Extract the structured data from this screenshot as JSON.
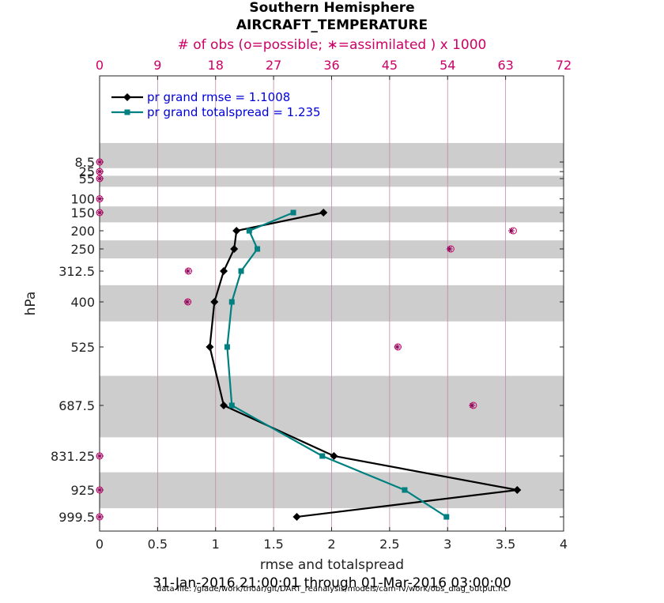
{
  "chart_data": {
    "type": "line",
    "title": "Southern Hemisphere",
    "subtitle": "AIRCRAFT_TEMPERATURE",
    "top_axis_label": "# of obs (o=possible; ∗=assimilated ) x 1000",
    "xlabel": "rmse and totalspread",
    "ylabel": "hPa",
    "xlim": [
      0,
      4
    ],
    "top_xlim": [
      0,
      72
    ],
    "x_ticks": [
      "0",
      "0.5",
      "1",
      "1.5",
      "2",
      "2.5",
      "3",
      "3.5",
      "4"
    ],
    "x_tick_values": [
      0,
      0.5,
      1,
      1.5,
      2,
      2.5,
      3,
      3.5,
      4
    ],
    "top_ticks": [
      "0",
      "9",
      "18",
      "27",
      "36",
      "45",
      "54",
      "63",
      "72"
    ],
    "top_tick_values": [
      0,
      9,
      18,
      27,
      36,
      45,
      54,
      63,
      72
    ],
    "levels": [
      "8.5",
      "25",
      "55",
      "100",
      "150",
      "200",
      "250",
      "312.5",
      "400",
      "525",
      "687.5",
      "831.25",
      "925",
      "999.5"
    ],
    "level_values": [
      8.5,
      25,
      55,
      100,
      150,
      200,
      250,
      312.5,
      400,
      525,
      687.5,
      831.25,
      925,
      999.5
    ],
    "shaded_bands_hPa": [
      [
        1,
        17
      ],
      [
        40,
        70
      ],
      [
        125,
        175
      ],
      [
        225,
        275
      ],
      [
        350,
        450
      ],
      [
        600,
        775
      ],
      [
        875,
        975
      ]
    ],
    "series": [
      {
        "name": "pr grand rmse = 1.1008",
        "color": "#000000",
        "marker": "diamond",
        "levels": [
          150,
          200,
          250,
          312.5,
          400,
          525,
          687.5,
          831.25,
          925,
          999.5
        ],
        "values": [
          1.93,
          1.18,
          1.16,
          1.07,
          0.99,
          0.95,
          1.07,
          2.02,
          3.6,
          1.7
        ]
      },
      {
        "name": "pr grand totalspread = 1.235",
        "color": "#008080",
        "marker": "square",
        "levels": [
          150,
          200,
          250,
          312.5,
          400,
          525,
          687.5,
          831.25,
          925,
          999.5
        ],
        "values": [
          1.67,
          1.29,
          1.36,
          1.22,
          1.14,
          1.1,
          1.14,
          1.92,
          2.63,
          2.99
        ]
      }
    ],
    "obs_counts": {
      "levels": [
        8.5,
        25,
        55,
        100,
        150,
        200,
        250,
        312.5,
        400,
        525,
        687.5,
        831.25,
        925,
        999.5
      ],
      "possible": [
        0,
        0,
        0,
        0,
        0,
        64.2,
        54.5,
        13.8,
        13.7,
        46.3,
        58,
        0,
        0,
        0
      ],
      "assimilated": [
        0,
        0,
        0,
        0,
        0,
        63.9,
        54.3,
        13.7,
        13.6,
        46.2,
        57.8,
        0,
        0,
        0
      ]
    },
    "footer": "31-Jan-2016 21:00:01 through 01-Mar-2016 03:00:00",
    "data_file": "data file: /glade/work/thoar/git/DART_reanalysis/models/cam-fv/work/obs_diag_output.nc"
  }
}
